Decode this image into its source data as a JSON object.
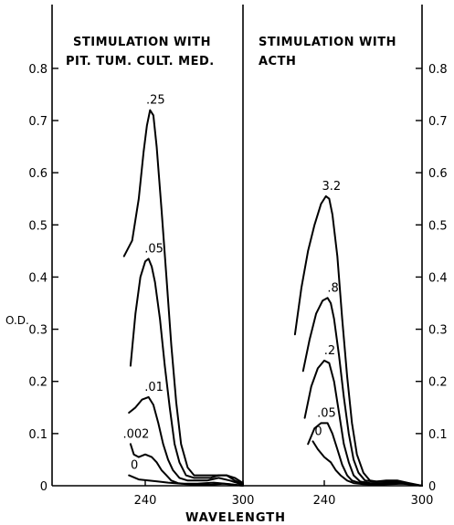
{
  "chart_data": [
    {
      "type": "line",
      "title": [
        "STIMULATION WITH",
        "PIT. TUM. CULT. MED."
      ],
      "xlabel": "WAVELENGTH",
      "ylabel": "O.D.",
      "xlim": [
        200,
        300
      ],
      "ylim": [
        0,
        0.85
      ],
      "x_ticks": [
        240,
        300
      ],
      "y_ticks": [
        "0",
        "0.1",
        "0.2",
        "0.3",
        "0.4",
        "0.5",
        "0.6",
        "0.7",
        "0.8"
      ],
      "series": [
        {
          "name": ".25",
          "x": [
            227,
            232,
            236,
            239,
            241,
            243,
            245,
            247,
            250,
            253,
            256,
            259,
            262,
            266,
            270,
            275,
            280,
            285,
            290,
            295,
            300
          ],
          "y": [
            0.44,
            0.47,
            0.55,
            0.64,
            0.69,
            0.72,
            0.71,
            0.65,
            0.53,
            0.4,
            0.27,
            0.16,
            0.08,
            0.035,
            0.02,
            0.02,
            0.02,
            0.02,
            0.02,
            0.015,
            0.005
          ]
        },
        {
          "name": ".05",
          "x": [
            231,
            234,
            237,
            240,
            242,
            244,
            246,
            249,
            252,
            255,
            258,
            261,
            265,
            270,
            275,
            280,
            285,
            290,
            295,
            300
          ],
          "y": [
            0.23,
            0.33,
            0.4,
            0.43,
            0.435,
            0.42,
            0.39,
            0.32,
            0.23,
            0.15,
            0.08,
            0.045,
            0.02,
            0.015,
            0.015,
            0.015,
            0.02,
            0.02,
            0.01,
            0.003
          ]
        },
        {
          "name": ".01",
          "x": [
            230,
            234,
            238,
            242,
            245,
            248,
            251,
            254,
            257,
            261,
            266,
            272,
            278,
            285,
            292,
            300
          ],
          "y": [
            0.14,
            0.15,
            0.165,
            0.17,
            0.155,
            0.12,
            0.08,
            0.05,
            0.03,
            0.015,
            0.01,
            0.01,
            0.01,
            0.015,
            0.01,
            0.002
          ]
        },
        {
          "name": ".002",
          "x": [
            231,
            233,
            236,
            240,
            244,
            247,
            250,
            253,
            256,
            260,
            265,
            272,
            280,
            288,
            295,
            300
          ],
          "y": [
            0.08,
            0.06,
            0.055,
            0.06,
            0.055,
            0.045,
            0.03,
            0.02,
            0.01,
            0.005,
            0.003,
            0.002,
            0.002,
            0.004,
            0.002,
            0.0
          ]
        },
        {
          "name": "0",
          "x": [
            230,
            236,
            242,
            248,
            254,
            262,
            272,
            282,
            292,
            300
          ],
          "y": [
            0.02,
            0.012,
            0.01,
            0.008,
            0.006,
            0.004,
            0.004,
            0.006,
            0.003,
            0.0
          ]
        }
      ],
      "curve_labels": [
        ".25",
        ".05",
        ".01",
        ".002",
        "0"
      ]
    },
    {
      "type": "line",
      "title": [
        "STIMULATION WITH",
        "ACTH"
      ],
      "xlabel": "WAVELENGTH",
      "ylabel": "",
      "xlim": [
        200,
        300
      ],
      "ylim": [
        0,
        0.85
      ],
      "x_ticks": [
        240,
        300
      ],
      "y_ticks": [
        "0",
        "0.1",
        "0.2",
        "0.3",
        "0.4",
        "0.5",
        "0.6",
        "0.7",
        "0.8"
      ],
      "series": [
        {
          "name": "3.2",
          "x": [
            222,
            226,
            230,
            234,
            238,
            241,
            243,
            245,
            248,
            251,
            254,
            257,
            260,
            264,
            268,
            272,
            278,
            285,
            292,
            300
          ],
          "y": [
            0.29,
            0.38,
            0.45,
            0.5,
            0.54,
            0.555,
            0.55,
            0.52,
            0.44,
            0.32,
            0.21,
            0.12,
            0.06,
            0.025,
            0.01,
            0.008,
            0.01,
            0.01,
            0.005,
            0.0
          ]
        },
        {
          "name": ".8",
          "x": [
            227,
            231,
            235,
            239,
            242,
            244,
            246,
            249,
            252,
            255,
            258,
            261,
            265,
            270,
            278,
            285,
            292,
            300
          ],
          "y": [
            0.22,
            0.28,
            0.33,
            0.355,
            0.36,
            0.35,
            0.32,
            0.25,
            0.17,
            0.1,
            0.05,
            0.025,
            0.01,
            0.008,
            0.008,
            0.008,
            0.004,
            0.0
          ]
        },
        {
          "name": ".2",
          "x": [
            228,
            232,
            236,
            240,
            243,
            246,
            249,
            252,
            255,
            258,
            262,
            268,
            275,
            282,
            290,
            300
          ],
          "y": [
            0.13,
            0.19,
            0.225,
            0.24,
            0.235,
            0.2,
            0.14,
            0.08,
            0.045,
            0.02,
            0.008,
            0.005,
            0.005,
            0.006,
            0.004,
            0.0
          ]
        },
        {
          "name": ".05",
          "x": [
            230,
            234,
            238,
            242,
            245,
            248,
            251,
            254,
            257,
            262,
            268,
            275,
            282,
            290,
            300
          ],
          "y": [
            0.08,
            0.11,
            0.12,
            0.12,
            0.1,
            0.07,
            0.04,
            0.02,
            0.01,
            0.005,
            0.004,
            0.004,
            0.005,
            0.004,
            0.0
          ]
        },
        {
          "name": "0",
          "x": [
            233,
            236,
            240,
            244,
            247,
            250,
            254,
            258,
            264,
            272,
            280,
            288,
            295,
            300
          ],
          "y": [
            0.085,
            0.07,
            0.055,
            0.045,
            0.03,
            0.02,
            0.01,
            0.005,
            0.003,
            0.002,
            0.003,
            0.004,
            0.002,
            0.0
          ]
        }
      ],
      "curve_labels": [
        "3.2",
        ".8",
        ".2",
        ".05",
        "0"
      ]
    }
  ]
}
